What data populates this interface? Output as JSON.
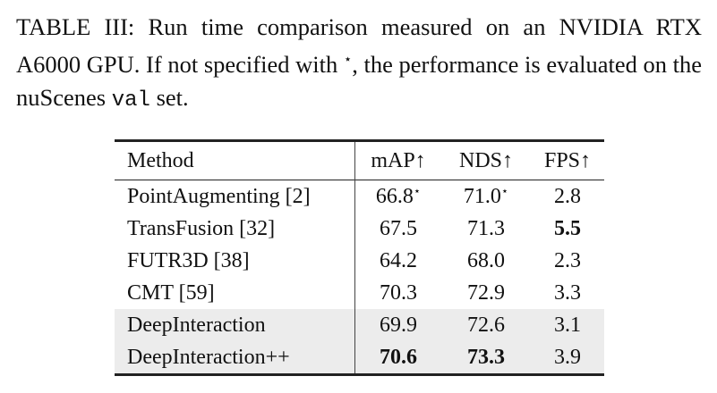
{
  "caption": {
    "part1": "TABLE III: Run time comparison measured on an NVIDIA RTX A6000 GPU. If not specified with ",
    "star": "⋆",
    "part2": ", the performance is evaluated on the nuScenes ",
    "code": "val",
    "part3": " set."
  },
  "table": {
    "headers": [
      "Method",
      "mAP↑",
      "NDS↑",
      "FPS↑"
    ],
    "rows": [
      {
        "method": "PointAugmenting [2]",
        "map": "66.8",
        "map_mark": "⋆",
        "nds": "71.0",
        "nds_mark": "⋆",
        "fps": "2.8",
        "shaded": false,
        "bold": []
      },
      {
        "method": "TransFusion [32]",
        "map": "67.5",
        "map_mark": "",
        "nds": "71.3",
        "nds_mark": "",
        "fps": "5.5",
        "shaded": false,
        "bold": [
          "fps"
        ]
      },
      {
        "method": "FUTR3D [38]",
        "map": "64.2",
        "map_mark": "",
        "nds": "68.0",
        "nds_mark": "",
        "fps": "2.3",
        "shaded": false,
        "bold": []
      },
      {
        "method": "CMT [59]",
        "map": "70.3",
        "map_mark": "",
        "nds": "72.9",
        "nds_mark": "",
        "fps": "3.3",
        "shaded": false,
        "bold": []
      },
      {
        "method": "DeepInteraction",
        "map": "69.9",
        "map_mark": "",
        "nds": "72.6",
        "nds_mark": "",
        "fps": "3.1",
        "shaded": true,
        "bold": []
      },
      {
        "method": "DeepInteraction++",
        "map": "70.6",
        "map_mark": "",
        "nds": "73.3",
        "nds_mark": "",
        "fps": "3.9",
        "shaded": true,
        "bold": [
          "map",
          "nds"
        ]
      }
    ]
  }
}
